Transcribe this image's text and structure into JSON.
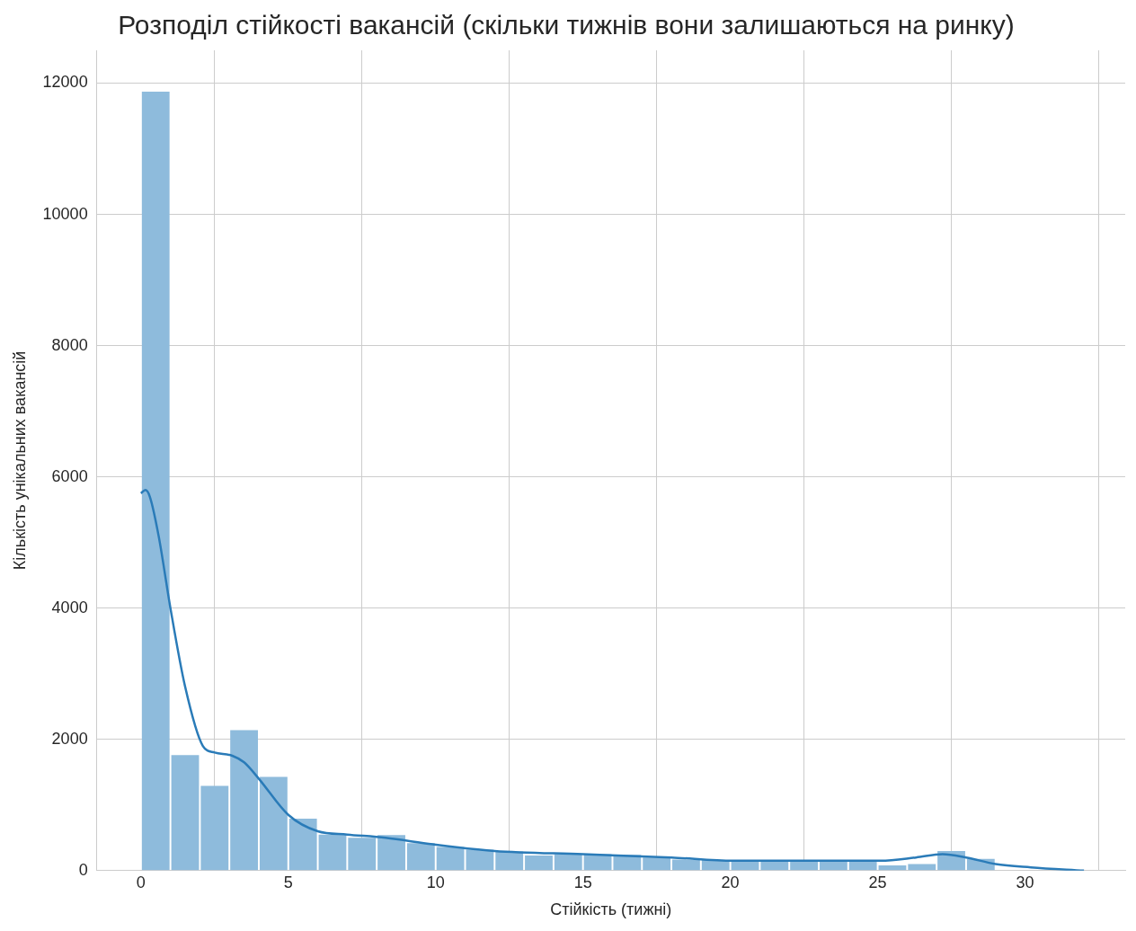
{
  "chart_data": {
    "type": "histogram",
    "title": "Розподіл стійкості вакансій (скільки тижнів вони залишаються на ринку)",
    "xlabel": "Стійкість (тижні)",
    "ylabel": "Кількість унікальних вакансій",
    "bins": [
      0,
      1,
      2,
      3,
      4,
      5,
      6,
      7,
      8,
      9,
      10,
      11,
      12,
      13,
      14,
      15,
      16,
      17,
      18,
      19,
      20,
      21,
      22,
      23,
      24,
      25,
      26,
      27,
      28,
      29
    ],
    "values": [
      11870,
      1760,
      1290,
      2140,
      1430,
      790,
      550,
      500,
      540,
      420,
      360,
      320,
      290,
      230,
      250,
      250,
      240,
      200,
      170,
      160,
      150,
      150,
      150,
      150,
      140,
      80,
      100,
      300,
      180
    ],
    "color": "#8ebbdc",
    "series": [
      {
        "type": "line",
        "color": "#2a7bb8",
        "x": [
          0,
          0.15,
          0.3,
          0.6,
          1,
          1.5,
          2.1,
          2.5,
          3.1,
          3.5,
          4,
          5,
          6,
          7,
          8.3,
          9.9,
          12,
          15,
          18,
          20.1,
          23,
          25.1,
          26.3,
          27.2,
          28,
          29,
          30.2,
          32
        ],
        "values": [
          5750,
          5800,
          5700,
          5100,
          4000,
          2800,
          1900,
          1800,
          1750,
          1650,
          1400,
          850,
          600,
          550,
          500,
          400,
          300,
          250,
          200,
          150,
          150,
          150,
          200,
          250,
          200,
          100,
          50,
          0
        ]
      }
    ],
    "xlim": [
      -1.5,
      33.4
    ],
    "xticks": [
      0,
      5,
      10,
      15,
      20,
      25,
      30
    ],
    "ylim": [
      0,
      12500
    ],
    "yticks": [
      0,
      2000,
      4000,
      6000,
      8000,
      10000,
      12000
    ],
    "grid": true,
    "legend": false
  }
}
